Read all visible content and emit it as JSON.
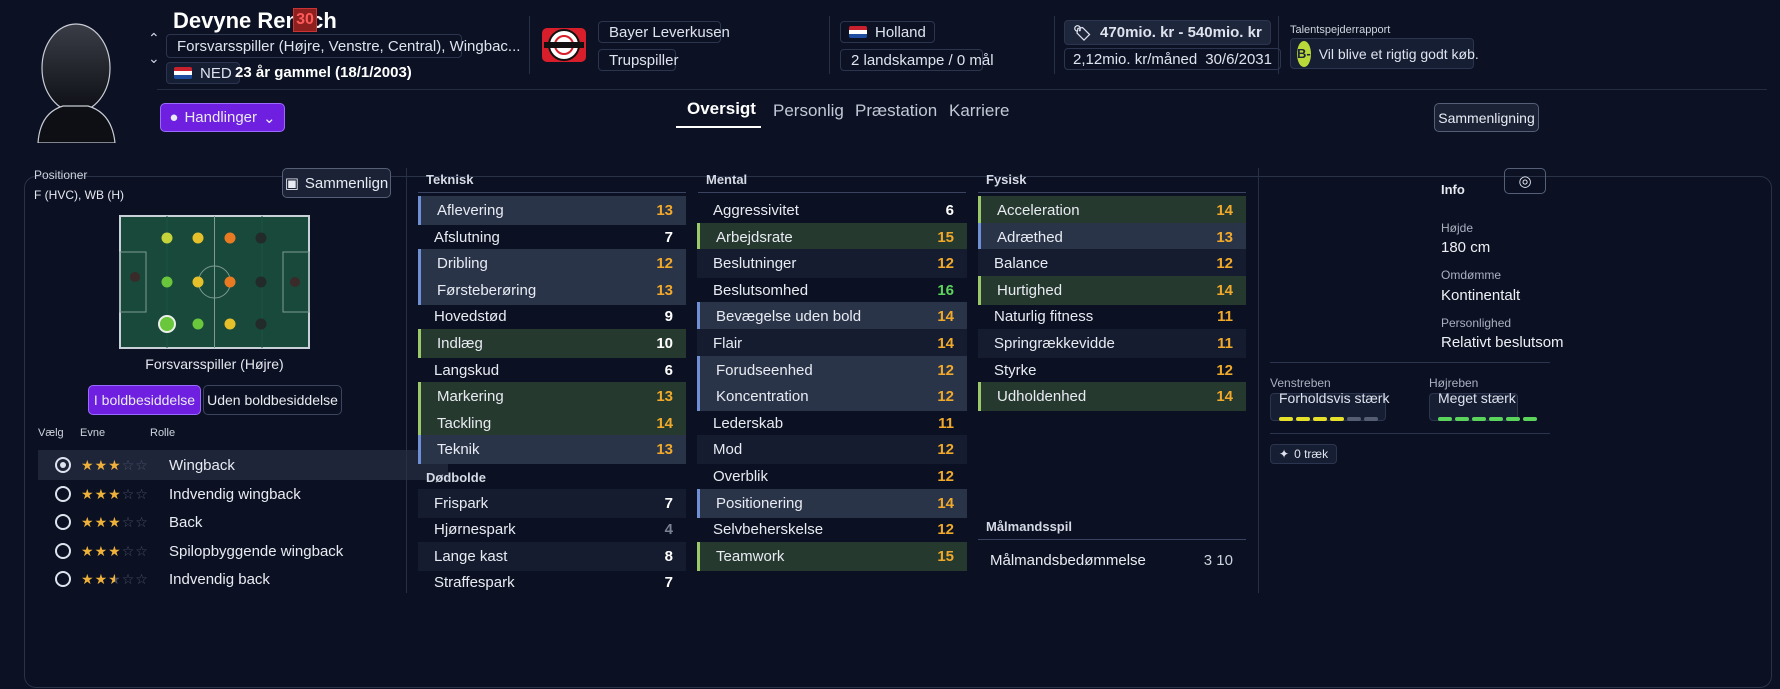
{
  "player": {
    "name": "Devyne Rensch",
    "ca": "30",
    "positions_text": "Forsvarsspiller (Højre, Venstre, Central), Wingbac...",
    "nationality_code": "NED",
    "age_text": "23 år gammel (18/1/2003)",
    "club": "Bayer Leverkusen",
    "squad_status": "Trupspiller",
    "country": "Holland",
    "caps": "2 landskampe / 0 mål",
    "value": "470mio. kr - 540mio. kr",
    "wage": "2,12mio. kr/måned",
    "contract_end": "30/6/2031",
    "scout_title": "Talentspejderrapport",
    "scout_grade": "B-",
    "scout_text": "Vil blive et rigtig godt køb."
  },
  "actions": {
    "label": "Handlinger"
  },
  "tabs": [
    "Oversigt",
    "Personlig",
    "Præstation",
    "Karriere"
  ],
  "compare_top": "Sammenligning",
  "positions_panel": {
    "title": "Positioner",
    "value": "F (HVC), WB (H)",
    "compare_btn": "Sammenlign",
    "selected_position": "Forsvarsspiller (Højre)",
    "toggle": [
      "I boldbesiddelse",
      "Uden boldbesiddelse"
    ],
    "role_headers": [
      "Vælg",
      "Evne",
      "Rolle"
    ],
    "roles": [
      {
        "name": "Wingback",
        "stars": 3,
        "selected": true
      },
      {
        "name": "Indvendig wingback",
        "stars": 3,
        "selected": false
      },
      {
        "name": "Back",
        "stars": 3,
        "selected": false
      },
      {
        "name": "Spilopbyggende wingback",
        "stars": 3,
        "selected": false
      },
      {
        "name": "Indvendig back",
        "stars": 2.5,
        "selected": false
      }
    ]
  },
  "attributes": {
    "technical": {
      "title": "Teknisk",
      "items": [
        {
          "name": "Aflevering",
          "value": "13"
        },
        {
          "name": "Afslutning",
          "value": "7"
        },
        {
          "name": "Dribling",
          "value": "12"
        },
        {
          "name": "Førsteberøring",
          "value": "13"
        },
        {
          "name": "Hovedstød",
          "value": "9"
        },
        {
          "name": "Indlæg",
          "value": "10"
        },
        {
          "name": "Langskud",
          "value": "6"
        },
        {
          "name": "Markering",
          "value": "13"
        },
        {
          "name": "Tackling",
          "value": "14"
        },
        {
          "name": "Teknik",
          "value": "13"
        }
      ]
    },
    "set_pieces": {
      "title": "Dødbolde",
      "items": [
        {
          "name": "Frispark",
          "value": "7"
        },
        {
          "name": "Hjørnespark",
          "value": "4"
        },
        {
          "name": "Lange kast",
          "value": "8"
        },
        {
          "name": "Straffespark",
          "value": "7"
        }
      ]
    },
    "mental": {
      "title": "Mental",
      "items": [
        {
          "name": "Aggressivitet",
          "value": "6"
        },
        {
          "name": "Arbejdsrate",
          "value": "15"
        },
        {
          "name": "Beslutninger",
          "value": "12"
        },
        {
          "name": "Beslutsomhed",
          "value": "16"
        },
        {
          "name": "Bevægelse uden bold",
          "value": "14"
        },
        {
          "name": "Flair",
          "value": "14"
        },
        {
          "name": "Forudseenhed",
          "value": "12"
        },
        {
          "name": "Koncentration",
          "value": "12"
        },
        {
          "name": "Lederskab",
          "value": "11"
        },
        {
          "name": "Mod",
          "value": "12"
        },
        {
          "name": "Overblik",
          "value": "12"
        },
        {
          "name": "Positionering",
          "value": "14"
        },
        {
          "name": "Selvbeherskelse",
          "value": "12"
        },
        {
          "name": "Teamwork",
          "value": "15"
        }
      ]
    },
    "physical": {
      "title": "Fysisk",
      "items": [
        {
          "name": "Acceleration",
          "value": "14"
        },
        {
          "name": "Adræthed",
          "value": "13"
        },
        {
          "name": "Balance",
          "value": "12"
        },
        {
          "name": "Hurtighed",
          "value": "14"
        },
        {
          "name": "Naturlig fitness",
          "value": "11"
        },
        {
          "name": "Springrækkevidde",
          "value": "11"
        },
        {
          "name": "Styrke",
          "value": "12"
        },
        {
          "name": "Udholdenhed",
          "value": "14"
        }
      ]
    },
    "goalkeeping": {
      "title": "Målmandsspil",
      "items": [
        {
          "name": "Målmandsbedømmelse",
          "value": "3 10"
        }
      ]
    }
  },
  "info": {
    "title": "Info",
    "height_label": "Højde",
    "height": "180 cm",
    "reputation_label": "Omdømme",
    "reputation": "Kontinentalt",
    "personality_label": "Personlighed",
    "personality": "Relativt beslutsom",
    "left_foot_label": "Venstreben",
    "left_foot": "Forholdsvis stærk",
    "left_foot_level": 4,
    "right_foot_label": "Højreben",
    "right_foot": "Meget stærk",
    "right_foot_level": 6,
    "traits": "0 træk"
  },
  "colors": {
    "accent": "#6f1fe0",
    "orange": "#f0a92a",
    "green": "#5bd45b",
    "ca_badge": "#8e1f1f"
  }
}
